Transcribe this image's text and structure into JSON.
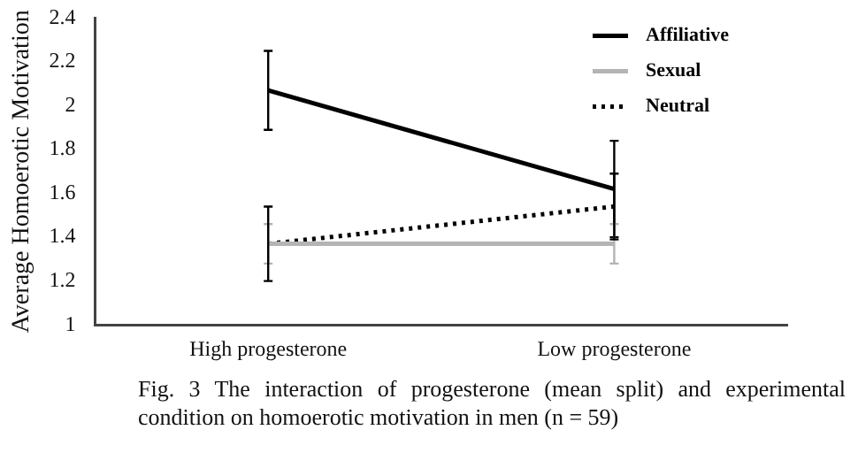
{
  "chart_data": {
    "type": "line",
    "ylabel": "Average Homoerotic Motivation",
    "categories": [
      "High progesterone",
      "Low progesterone"
    ],
    "series": [
      {
        "name": "Affiliative",
        "color": "#000000",
        "line_style": "solid",
        "values": [
          2.07,
          1.62
        ],
        "errors": [
          0.18,
          0.22
        ]
      },
      {
        "name": "Sexual",
        "color": "#b4b4b4",
        "line_style": "solid",
        "values": [
          1.37,
          1.37
        ],
        "errors": [
          0.09,
          0.09
        ]
      },
      {
        "name": "Neutral",
        "color": "#000000",
        "line_style": "dotted",
        "values": [
          1.37,
          1.54
        ],
        "errors": [
          0.17,
          0.15
        ]
      }
    ],
    "ylim": [
      1,
      2.4
    ],
    "yticks": [
      1,
      1.2,
      1.4,
      1.6,
      1.8,
      2,
      2.2,
      2.4
    ],
    "grid": false,
    "legend": "top right",
    "marker": "none",
    "annotations": [
      "Fig. 3 The interaction of progesterone (mean split) and experimental condition on homoerotic motivation in men (n = 59)"
    ]
  }
}
